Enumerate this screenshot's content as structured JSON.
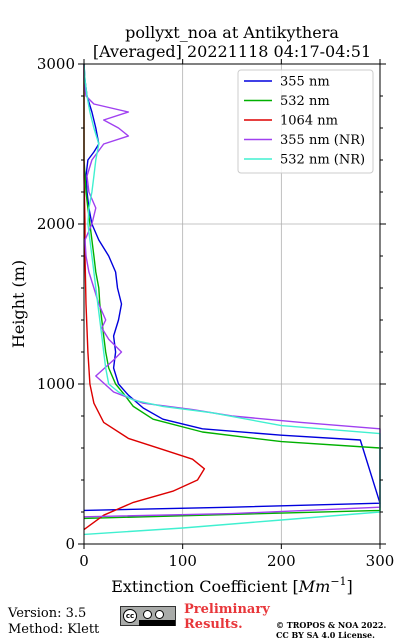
{
  "chart_data": {
    "type": "line",
    "title_line1": "pollyxt_noa at Antikythera",
    "title_line2": "[Averaged] 20221118 04:17-04:51",
    "xlabel": "Extinction Coefficient [$Mm^{-1}$]",
    "xlabel_text": "Extinction Coefficient [",
    "xlabel_unit": "Mm",
    "xlabel_exp": "−1",
    "xlabel_close": "]",
    "ylabel": "Height (m)",
    "xlim": [
      0,
      300
    ],
    "ylim": [
      0,
      3000
    ],
    "x_ticks": [
      0,
      100,
      200,
      300
    ],
    "x_tick_labels": [
      "0",
      "100",
      "200",
      "300"
    ],
    "y_ticks": [
      0,
      1000,
      2000,
      3000
    ],
    "y_tick_labels": [
      "0",
      "1000",
      "2000",
      "3000"
    ],
    "grid": true,
    "legend_position": "top-right",
    "series": [
      {
        "name": "355 nm",
        "color": "#0000dd",
        "points": [
          [
            0,
            210
          ],
          [
            150,
            230
          ],
          [
            300,
            255
          ],
          [
            280,
            650
          ],
          [
            200,
            680
          ],
          [
            120,
            720
          ],
          [
            80,
            780
          ],
          [
            60,
            850
          ],
          [
            45,
            930
          ],
          [
            35,
            1000
          ],
          [
            30,
            1100
          ],
          [
            32,
            1200
          ],
          [
            30,
            1300
          ],
          [
            35,
            1400
          ],
          [
            38,
            1500
          ],
          [
            34,
            1600
          ],
          [
            32,
            1700
          ],
          [
            25,
            1800
          ],
          [
            15,
            1900
          ],
          [
            8,
            2000
          ],
          [
            5,
            2100
          ],
          [
            3,
            2200
          ],
          [
            2,
            2300
          ],
          [
            4,
            2400
          ],
          [
            10,
            2450
          ],
          [
            15,
            2500
          ],
          [
            12,
            2600
          ],
          [
            8,
            2700
          ],
          [
            3,
            2800
          ],
          [
            1,
            2900
          ],
          [
            0,
            3000
          ]
        ]
      },
      {
        "name": "532 nm",
        "color": "#00b000",
        "points": [
          [
            0,
            160
          ],
          [
            150,
            185
          ],
          [
            300,
            210
          ],
          [
            300,
            600
          ],
          [
            200,
            640
          ],
          [
            120,
            700
          ],
          [
            70,
            780
          ],
          [
            50,
            860
          ],
          [
            40,
            940
          ],
          [
            32,
            1000
          ],
          [
            25,
            1100
          ],
          [
            22,
            1200
          ],
          [
            20,
            1300
          ],
          [
            18,
            1400
          ],
          [
            16,
            1500
          ],
          [
            15,
            1600
          ],
          [
            12,
            1700
          ],
          [
            10,
            1800
          ],
          [
            8,
            1900
          ],
          [
            6,
            2000
          ],
          [
            4,
            2100
          ],
          [
            2,
            2200
          ],
          [
            1,
            2300
          ],
          [
            0,
            2400
          ],
          [
            0,
            2500
          ],
          [
            0,
            2600
          ],
          [
            0,
            2700
          ],
          [
            0,
            2800
          ],
          [
            0,
            2900
          ],
          [
            0,
            3000
          ]
        ]
      },
      {
        "name": "1064 nm",
        "color": "#dd0000",
        "points": [
          [
            0,
            90
          ],
          [
            20,
            180
          ],
          [
            50,
            260
          ],
          [
            90,
            330
          ],
          [
            115,
            400
          ],
          [
            122,
            470
          ],
          [
            110,
            530
          ],
          [
            80,
            590
          ],
          [
            45,
            660
          ],
          [
            20,
            760
          ],
          [
            10,
            880
          ],
          [
            6,
            1000
          ],
          [
            4,
            1200
          ],
          [
            2,
            1500
          ],
          [
            1,
            1800
          ],
          [
            1,
            2000
          ],
          [
            0,
            2300
          ],
          [
            0,
            2600
          ],
          [
            0,
            2800
          ],
          [
            0,
            3000
          ]
        ]
      },
      {
        "name": "355 nm (NR)",
        "color": "#a040f0",
        "points": [
          [
            0,
            170
          ],
          [
            150,
            190
          ],
          [
            300,
            230
          ],
          [
            300,
            720
          ],
          [
            220,
            760
          ],
          [
            150,
            800
          ],
          [
            110,
            840
          ],
          [
            60,
            880
          ],
          [
            30,
            950
          ],
          [
            12,
            1050
          ],
          [
            30,
            1150
          ],
          [
            38,
            1200
          ],
          [
            25,
            1280
          ],
          [
            18,
            1350
          ],
          [
            22,
            1400
          ],
          [
            15,
            1500
          ],
          [
            10,
            1600
          ],
          [
            5,
            1700
          ],
          [
            2,
            1800
          ],
          [
            1,
            1900
          ],
          [
            8,
            2000
          ],
          [
            12,
            2100
          ],
          [
            5,
            2200
          ],
          [
            3,
            2300
          ],
          [
            8,
            2400
          ],
          [
            20,
            2500
          ],
          [
            45,
            2550
          ],
          [
            35,
            2600
          ],
          [
            20,
            2650
          ],
          [
            45,
            2700
          ],
          [
            10,
            2750
          ],
          [
            2,
            2800
          ],
          [
            0,
            2900
          ],
          [
            0,
            3000
          ]
        ]
      },
      {
        "name": "532 nm (NR)",
        "color": "#40f0d0",
        "points": [
          [
            0,
            60
          ],
          [
            100,
            100
          ],
          [
            200,
            150
          ],
          [
            300,
            200
          ],
          [
            300,
            690
          ],
          [
            200,
            740
          ],
          [
            130,
            820
          ],
          [
            80,
            860
          ],
          [
            50,
            900
          ],
          [
            35,
            950
          ],
          [
            25,
            1000
          ],
          [
            22,
            1100
          ],
          [
            20,
            1200
          ],
          [
            18,
            1300
          ],
          [
            16,
            1400
          ],
          [
            14,
            1500
          ],
          [
            12,
            1600
          ],
          [
            10,
            1700
          ],
          [
            8,
            1800
          ],
          [
            6,
            1900
          ],
          [
            4,
            2000
          ],
          [
            5,
            2100
          ],
          [
            8,
            2200
          ],
          [
            10,
            2300
          ],
          [
            12,
            2400
          ],
          [
            15,
            2500
          ],
          [
            10,
            2600
          ],
          [
            6,
            2700
          ],
          [
            3,
            2800
          ],
          [
            1,
            2900
          ],
          [
            0,
            3000
          ]
        ]
      }
    ]
  },
  "footer": {
    "version": "Version: 3.5",
    "method": "Method: Klett",
    "preliminary_line1": "Preliminary",
    "preliminary_line2": "Results.",
    "copyright_line1": "© TROPOS & NOA 2022.",
    "copyright_line2": "CC BY SA 4.0 License."
  },
  "logo": {
    "cc_text": "cc"
  }
}
